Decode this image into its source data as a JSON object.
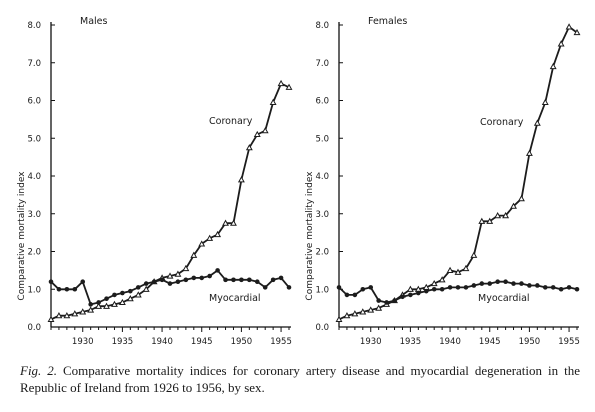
{
  "chart_data": [
    {
      "type": "line",
      "title": "Males",
      "xlabel": "",
      "ylabel": "Comparative mortality index",
      "xlim": [
        1926,
        1956
      ],
      "ylim": [
        0.0,
        8.0
      ],
      "xticks": [
        "1930",
        "1935",
        "1940",
        "1945",
        "1950",
        "1955"
      ],
      "yticks": [
        "0.0",
        "1.0",
        "2.0",
        "3.0",
        "4.0",
        "5.0",
        "6.0",
        "7.0",
        "8.0"
      ],
      "grid": false,
      "series": [
        {
          "name": "Coronary",
          "marker": "triangle",
          "x": [
            1926,
            1927,
            1928,
            1929,
            1930,
            1931,
            1932,
            1933,
            1934,
            1935,
            1936,
            1937,
            1938,
            1939,
            1940,
            1941,
            1942,
            1943,
            1944,
            1945,
            1946,
            1947,
            1948,
            1949,
            1950,
            1951,
            1952,
            1953,
            1954,
            1955,
            1956
          ],
          "y": [
            0.2,
            0.3,
            0.3,
            0.35,
            0.4,
            0.45,
            0.55,
            0.55,
            0.6,
            0.65,
            0.75,
            0.85,
            1.0,
            1.2,
            1.3,
            1.35,
            1.4,
            1.55,
            1.9,
            2.2,
            2.35,
            2.45,
            2.75,
            2.75,
            3.9,
            4.75,
            5.1,
            5.2,
            5.95,
            6.45,
            6.35
          ]
        },
        {
          "name": "Myocardial",
          "marker": "circle",
          "x": [
            1926,
            1927,
            1928,
            1929,
            1930,
            1931,
            1932,
            1933,
            1934,
            1935,
            1936,
            1937,
            1938,
            1939,
            1940,
            1941,
            1942,
            1943,
            1944,
            1945,
            1946,
            1947,
            1948,
            1949,
            1950,
            1951,
            1952,
            1953,
            1954,
            1955,
            1956
          ],
          "y": [
            1.2,
            1.0,
            1.0,
            1.0,
            1.2,
            0.6,
            0.65,
            0.75,
            0.85,
            0.9,
            0.95,
            1.05,
            1.15,
            1.2,
            1.25,
            1.15,
            1.2,
            1.25,
            1.3,
            1.3,
            1.35,
            1.5,
            1.25,
            1.25,
            1.25,
            1.25,
            1.2,
            1.05,
            1.25,
            1.3,
            1.05
          ]
        }
      ]
    },
    {
      "type": "line",
      "title": "Females",
      "xlabel": "",
      "ylabel": "Comparative mortality index",
      "xlim": [
        1926,
        1956
      ],
      "ylim": [
        0.0,
        8.0
      ],
      "xticks": [
        "1930",
        "1935",
        "1940",
        "1945",
        "1950",
        "1955"
      ],
      "yticks": [
        "0.0",
        "1.0",
        "2.0",
        "3.0",
        "4.0",
        "5.0",
        "6.0",
        "7.0",
        "8.0"
      ],
      "grid": false,
      "series": [
        {
          "name": "Coronary",
          "marker": "triangle",
          "x": [
            1926,
            1927,
            1928,
            1929,
            1930,
            1931,
            1932,
            1933,
            1934,
            1935,
            1936,
            1937,
            1938,
            1939,
            1940,
            1941,
            1942,
            1943,
            1944,
            1945,
            1946,
            1947,
            1948,
            1949,
            1950,
            1951,
            1952,
            1953,
            1954,
            1955,
            1956
          ],
          "y": [
            0.2,
            0.3,
            0.35,
            0.4,
            0.45,
            0.5,
            0.6,
            0.7,
            0.85,
            1.0,
            1.0,
            1.05,
            1.15,
            1.25,
            1.5,
            1.45,
            1.55,
            1.9,
            2.8,
            2.8,
            2.95,
            2.95,
            3.2,
            3.4,
            4.6,
            5.4,
            5.95,
            6.9,
            7.5,
            7.95,
            7.8
          ]
        },
        {
          "name": "Myocardial",
          "marker": "circle",
          "x": [
            1926,
            1927,
            1928,
            1929,
            1930,
            1931,
            1932,
            1933,
            1934,
            1935,
            1936,
            1937,
            1938,
            1939,
            1940,
            1941,
            1942,
            1943,
            1944,
            1945,
            1946,
            1947,
            1948,
            1949,
            1950,
            1951,
            1952,
            1953,
            1954,
            1955,
            1956
          ],
          "y": [
            1.05,
            0.85,
            0.85,
            1.0,
            1.05,
            0.7,
            0.65,
            0.7,
            0.8,
            0.85,
            0.9,
            0.95,
            1.0,
            1.0,
            1.05,
            1.05,
            1.05,
            1.1,
            1.15,
            1.15,
            1.2,
            1.2,
            1.15,
            1.15,
            1.1,
            1.1,
            1.05,
            1.05,
            1.0,
            1.05,
            1.0
          ]
        }
      ]
    }
  ],
  "caption": {
    "fig_number": "Fig. 2.",
    "text": "Comparative mortality indices for coronary artery disease and myocardial degeneration in the Republic of Ireland from 1926 to 1956, by sex."
  }
}
